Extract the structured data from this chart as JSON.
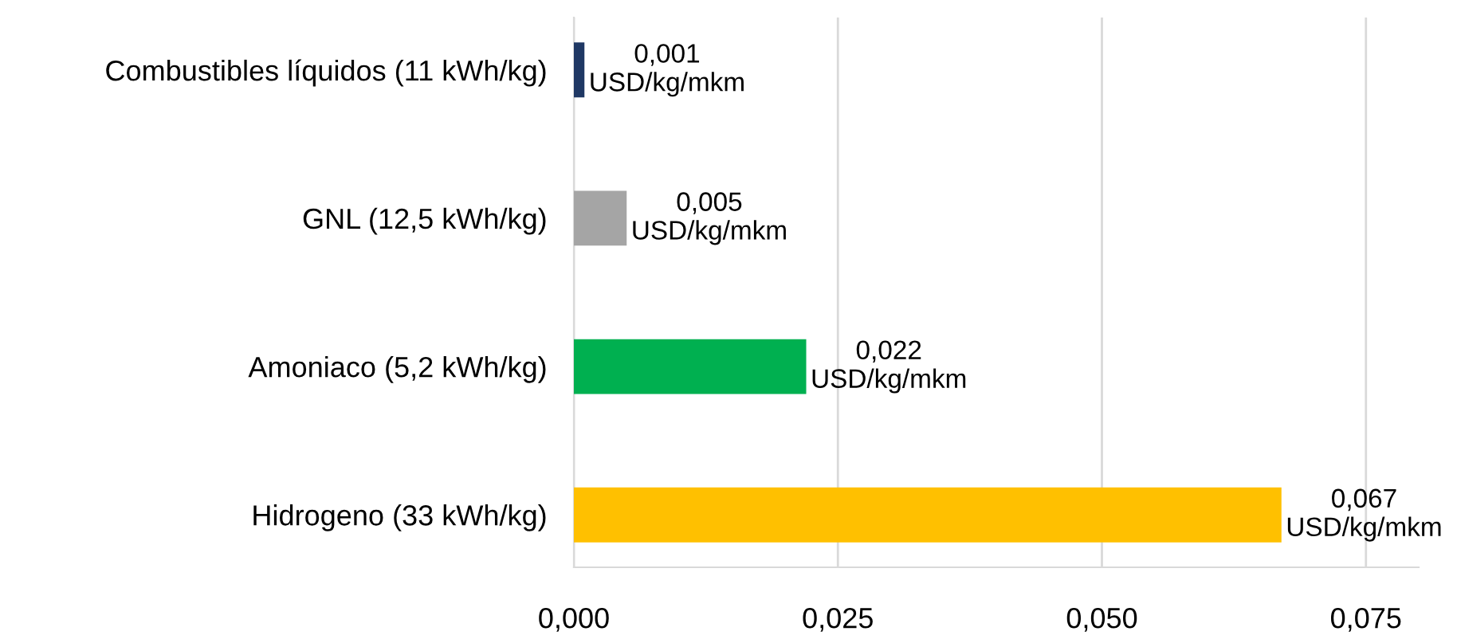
{
  "chart_data": {
    "type": "bar",
    "orientation": "horizontal",
    "categories": [
      "Combustibles líquidos (11 kWh/kg)",
      "GNL (12,5 kWh/kg)",
      "Amoniaco (5,2 kWh/kg)",
      "Hidrogeno (33 kWh/kg)"
    ],
    "values": [
      0.001,
      0.005,
      0.022,
      0.067
    ],
    "colors": [
      "#1f3864",
      "#a5a5a5",
      "#00b050",
      "#ffc000"
    ],
    "value_labels": [
      "0,001\nUSD/kg/mkm",
      "0,005\nUSD/kg/mkm",
      "0,022\nUSD/kg/mkm",
      "0,067\nUSD/kg/mkm"
    ],
    "xlim": [
      0,
      0.08
    ],
    "xticks": [
      {
        "value": 0,
        "label": "0,000"
      },
      {
        "value": 0.025,
        "label": "0,025"
      },
      {
        "value": 0.05,
        "label": "0,050"
      },
      {
        "value": 0.075,
        "label": "0,075"
      }
    ],
    "grid": "x",
    "legend": false
  }
}
